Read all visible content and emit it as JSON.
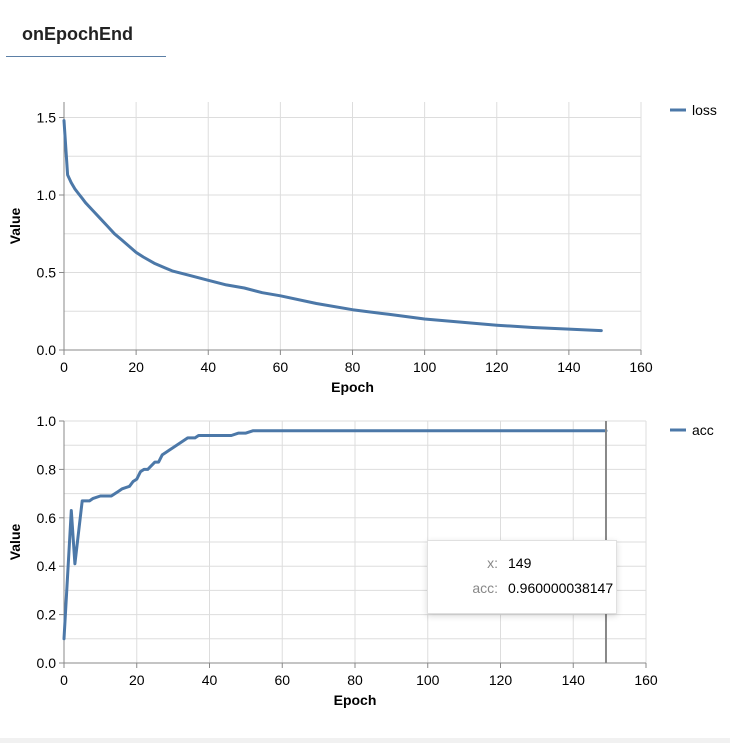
{
  "tab": {
    "title": "onEpochEnd"
  },
  "charts": {
    "loss": {
      "xlabel": "Epoch",
      "ylabel": "Value",
      "legend": "loss",
      "xticks": [
        "0",
        "20",
        "40",
        "60",
        "80",
        "100",
        "120",
        "140",
        "160"
      ],
      "yticks": [
        "0.0",
        "0.5",
        "1.0",
        "1.5"
      ]
    },
    "acc": {
      "xlabel": "Epoch",
      "ylabel": "Value",
      "legend": "acc",
      "xticks": [
        "0",
        "20",
        "40",
        "60",
        "80",
        "100",
        "120",
        "140",
        "160"
      ],
      "yticks": [
        "0.0",
        "0.2",
        "0.4",
        "0.6",
        "0.8",
        "1.0"
      ]
    }
  },
  "tooltip": {
    "x_key": "x:",
    "x_value": "149",
    "acc_key": "acc:",
    "acc_value": "0.960000038147"
  },
  "colors": {
    "series": "#4c78a8",
    "grid": "#dddddd",
    "rule": "#888888"
  },
  "chart_data": [
    {
      "type": "line",
      "xlabel": "Epoch",
      "ylabel": "Value",
      "xlim": [
        0,
        160
      ],
      "ylim": [
        0,
        1.6
      ],
      "grid": true,
      "legend_position": "top-right",
      "series": [
        {
          "name": "loss",
          "x": [
            0,
            1,
            2,
            3,
            4,
            5,
            6,
            8,
            10,
            12,
            14,
            16,
            18,
            20,
            22,
            25,
            28,
            30,
            35,
            40,
            45,
            50,
            55,
            60,
            70,
            80,
            90,
            100,
            110,
            120,
            130,
            140,
            149
          ],
          "y": [
            1.48,
            1.13,
            1.08,
            1.04,
            1.01,
            0.98,
            0.95,
            0.9,
            0.85,
            0.8,
            0.75,
            0.71,
            0.67,
            0.63,
            0.6,
            0.56,
            0.53,
            0.51,
            0.48,
            0.45,
            0.42,
            0.4,
            0.37,
            0.35,
            0.3,
            0.26,
            0.23,
            0.2,
            0.18,
            0.16,
            0.145,
            0.135,
            0.125
          ]
        }
      ]
    },
    {
      "type": "line",
      "xlabel": "Epoch",
      "ylabel": "Value",
      "xlim": [
        0,
        160
      ],
      "ylim": [
        0,
        1.0
      ],
      "grid": true,
      "legend_position": "top-right",
      "series": [
        {
          "name": "acc",
          "x": [
            0,
            2,
            3,
            5,
            7,
            8,
            10,
            13,
            15,
            16,
            18,
            19,
            20,
            21,
            22,
            23,
            25,
            26,
            27,
            28,
            29,
            30,
            32,
            34,
            36,
            37,
            40,
            41,
            44,
            46,
            48,
            50,
            52,
            60,
            70,
            80,
            86,
            87,
            88,
            100,
            113,
            114,
            130,
            149
          ],
          "y": [
            0.1,
            0.63,
            0.41,
            0.67,
            0.67,
            0.68,
            0.69,
            0.69,
            0.71,
            0.72,
            0.73,
            0.75,
            0.76,
            0.79,
            0.8,
            0.8,
            0.83,
            0.83,
            0.86,
            0.87,
            0.88,
            0.89,
            0.91,
            0.93,
            0.93,
            0.94,
            0.94,
            0.94,
            0.94,
            0.94,
            0.95,
            0.95,
            0.96,
            0.96,
            0.96,
            0.96,
            0.96,
            0.96,
            0.96,
            0.96,
            0.96,
            0.96,
            0.96,
            0.96
          ]
        }
      ]
    }
  ]
}
